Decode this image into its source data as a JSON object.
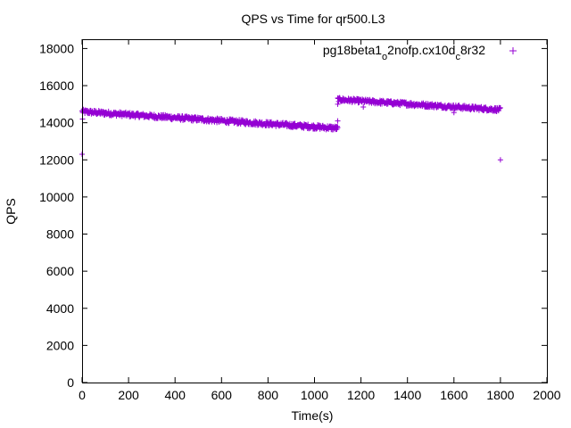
{
  "chart_data": {
    "type": "scatter",
    "title": "QPS vs Time for qr500.L3",
    "xlabel": "Time(s)",
    "ylabel": "QPS",
    "xlim": [
      0,
      2000
    ],
    "ylim": [
      0,
      18500
    ],
    "xticks": [
      "0",
      "200",
      "400",
      "600",
      "800",
      "1000",
      "1200",
      "1400",
      "1600",
      "1800",
      "2000"
    ],
    "yticks": [
      "0",
      "2000",
      "4000",
      "6000",
      "8000",
      "10000",
      "12000",
      "14000",
      "16000",
      "18000"
    ],
    "legend_position": "top-right",
    "grid": false,
    "series": [
      {
        "name": "pg18beta1_o2nofp.cx10d_c8r32",
        "color": "#9400d3",
        "marker": "+",
        "segments": [
          {
            "x_start": 0,
            "x_end": 1100,
            "y_start": 14600,
            "y_end": 13700,
            "noise": 120,
            "step": 2
          },
          {
            "x_start": 1100,
            "x_end": 1800,
            "y_start": 15250,
            "y_end": 14700,
            "noise": 110,
            "step": 2
          }
        ],
        "outliers": [
          [
            0,
            12300
          ],
          [
            2,
            14200
          ],
          [
            1100,
            14100
          ],
          [
            1100,
            15000
          ],
          [
            1210,
            14850
          ],
          [
            1600,
            14550
          ],
          [
            1800,
            12000
          ]
        ]
      }
    ]
  }
}
